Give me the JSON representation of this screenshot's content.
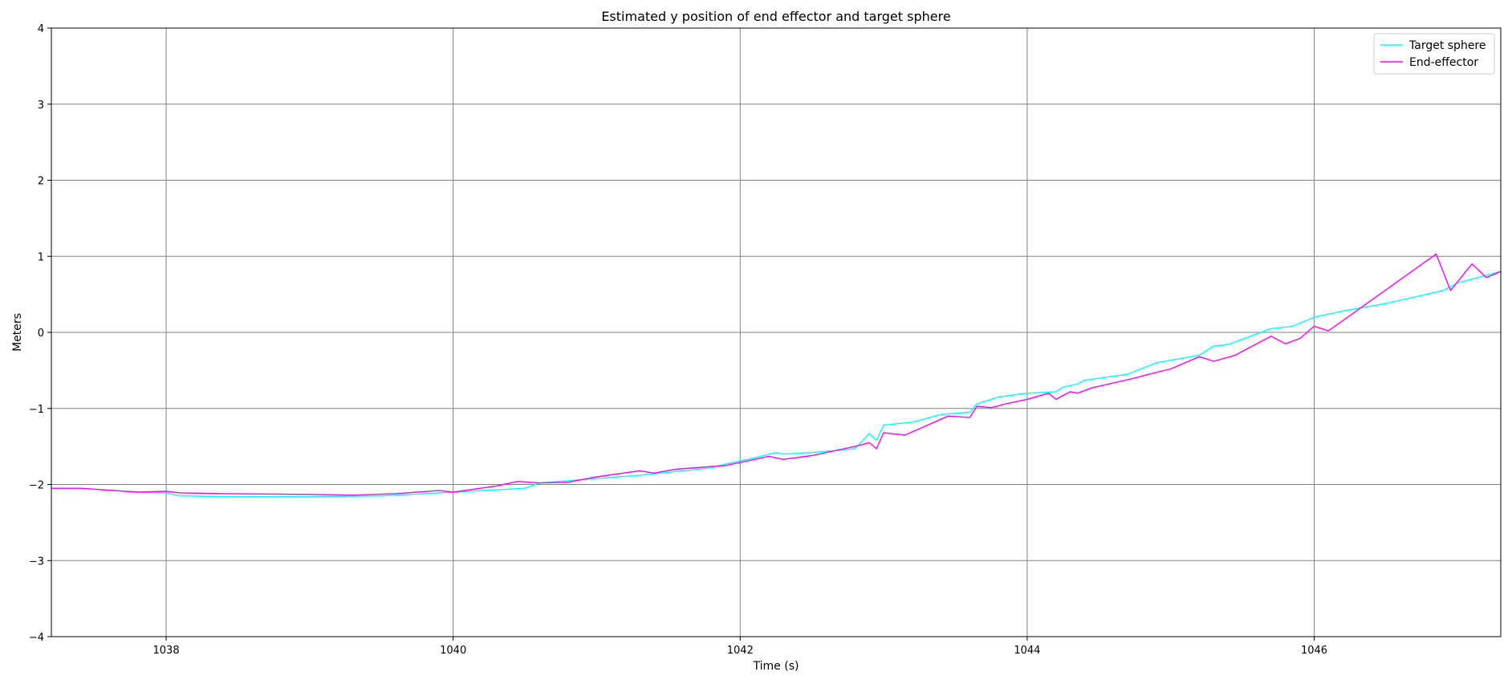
{
  "chart_data": {
    "type": "line",
    "title": "Estimated y position of end effector and target sphere",
    "xlabel": "Time (s)",
    "ylabel": "Meters",
    "xlim": [
      1037.2,
      1047.3
    ],
    "ylim": [
      -4,
      4
    ],
    "xticks": [
      1038,
      1040,
      1042,
      1044,
      1046
    ],
    "yticks": [
      -4,
      -3,
      -2,
      -1,
      0,
      1,
      2,
      3,
      4
    ],
    "xtick_labels": [
      "1038",
      "1040",
      "1042",
      "1044",
      "1046"
    ],
    "ytick_labels": [
      "−4",
      "−3",
      "−2",
      "−1",
      "0",
      "1",
      "2",
      "3",
      "4"
    ],
    "grid": true,
    "legend_position": "top-right",
    "series": [
      {
        "name": "Target sphere",
        "color": "#00ffff",
        "x": [
          1037.2,
          1037.4,
          1037.8,
          1038.0,
          1038.1,
          1038.4,
          1039.0,
          1039.5,
          1039.7,
          1040.0,
          1040.3,
          1040.5,
          1040.6,
          1040.8,
          1041.0,
          1041.3,
          1041.6,
          1041.8,
          1041.9,
          1042.1,
          1042.25,
          1042.3,
          1042.5,
          1042.8,
          1042.9,
          1042.95,
          1043.0,
          1043.2,
          1043.4,
          1043.6,
          1043.65,
          1043.8,
          1044.0,
          1044.2,
          1044.25,
          1044.35,
          1044.4,
          1044.7,
          1044.9,
          1045.2,
          1045.3,
          1045.4,
          1045.7,
          1045.85,
          1046.0,
          1046.2,
          1046.5,
          1046.9,
          1047.0,
          1047.3
        ],
        "y": [
          -2.05,
          -2.05,
          -2.1,
          -2.11,
          -2.15,
          -2.16,
          -2.16,
          -2.15,
          -2.13,
          -2.1,
          -2.07,
          -2.05,
          -1.98,
          -1.95,
          -1.92,
          -1.88,
          -1.82,
          -1.78,
          -1.73,
          -1.65,
          -1.58,
          -1.6,
          -1.58,
          -1.53,
          -1.33,
          -1.42,
          -1.22,
          -1.18,
          -1.08,
          -1.05,
          -0.94,
          -0.85,
          -0.8,
          -0.78,
          -0.72,
          -0.68,
          -0.63,
          -0.55,
          -0.4,
          -0.3,
          -0.18,
          -0.16,
          0.05,
          0.08,
          0.2,
          0.28,
          0.38,
          0.55,
          0.65,
          0.8
        ]
      },
      {
        "name": "End-effector",
        "color": "#ff00ff",
        "x": [
          1037.2,
          1037.4,
          1037.8,
          1038.0,
          1038.1,
          1038.4,
          1039.0,
          1039.3,
          1039.6,
          1039.9,
          1040.0,
          1040.3,
          1040.45,
          1040.6,
          1040.8,
          1041.0,
          1041.3,
          1041.4,
          1041.55,
          1041.9,
          1042.2,
          1042.3,
          1042.5,
          1042.8,
          1042.9,
          1042.95,
          1043.0,
          1043.15,
          1043.45,
          1043.6,
          1043.65,
          1043.75,
          1043.85,
          1044.0,
          1044.15,
          1044.2,
          1044.3,
          1044.35,
          1044.45,
          1044.75,
          1044.85,
          1045.0,
          1045.2,
          1045.3,
          1045.45,
          1045.7,
          1045.8,
          1045.9,
          1046.0,
          1046.1,
          1046.85,
          1046.95,
          1047.1,
          1047.2,
          1047.3
        ],
        "y": [
          -2.05,
          -2.05,
          -2.1,
          -2.09,
          -2.11,
          -2.12,
          -2.13,
          -2.14,
          -2.12,
          -2.08,
          -2.1,
          -2.02,
          -1.96,
          -1.98,
          -1.97,
          -1.9,
          -1.82,
          -1.85,
          -1.8,
          -1.75,
          -1.63,
          -1.67,
          -1.62,
          -1.5,
          -1.45,
          -1.53,
          -1.32,
          -1.35,
          -1.1,
          -1.12,
          -0.97,
          -0.99,
          -0.94,
          -0.88,
          -0.8,
          -0.88,
          -0.78,
          -0.8,
          -0.73,
          -0.6,
          -0.55,
          -0.48,
          -0.32,
          -0.38,
          -0.3,
          -0.05,
          -0.15,
          -0.08,
          0.08,
          0.02,
          1.03,
          0.55,
          0.9,
          0.72,
          0.8
        ]
      }
    ]
  }
}
